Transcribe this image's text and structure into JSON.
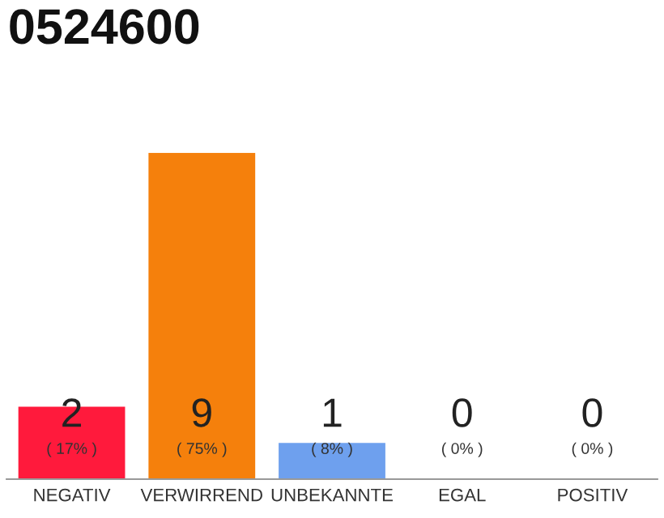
{
  "chart_data": {
    "type": "bar",
    "title": "0524600",
    "categories": [
      "NEGATIV",
      "VERWIRREND",
      "UNBEKANNTE",
      "EGAL",
      "POSITIV"
    ],
    "values": [
      2,
      9,
      1,
      0,
      0
    ],
    "colors": [
      "#ff1a3c",
      "#f5800c",
      "#6ea0ee",
      "#cccccc",
      "#cccccc"
    ],
    "ylim": [
      0,
      9
    ],
    "data_labels": true,
    "annotations": [
      "( 17% )",
      "( 75% )",
      "( 8% )",
      "( 0% )",
      "( 0% )"
    ],
    "grid": false
  }
}
